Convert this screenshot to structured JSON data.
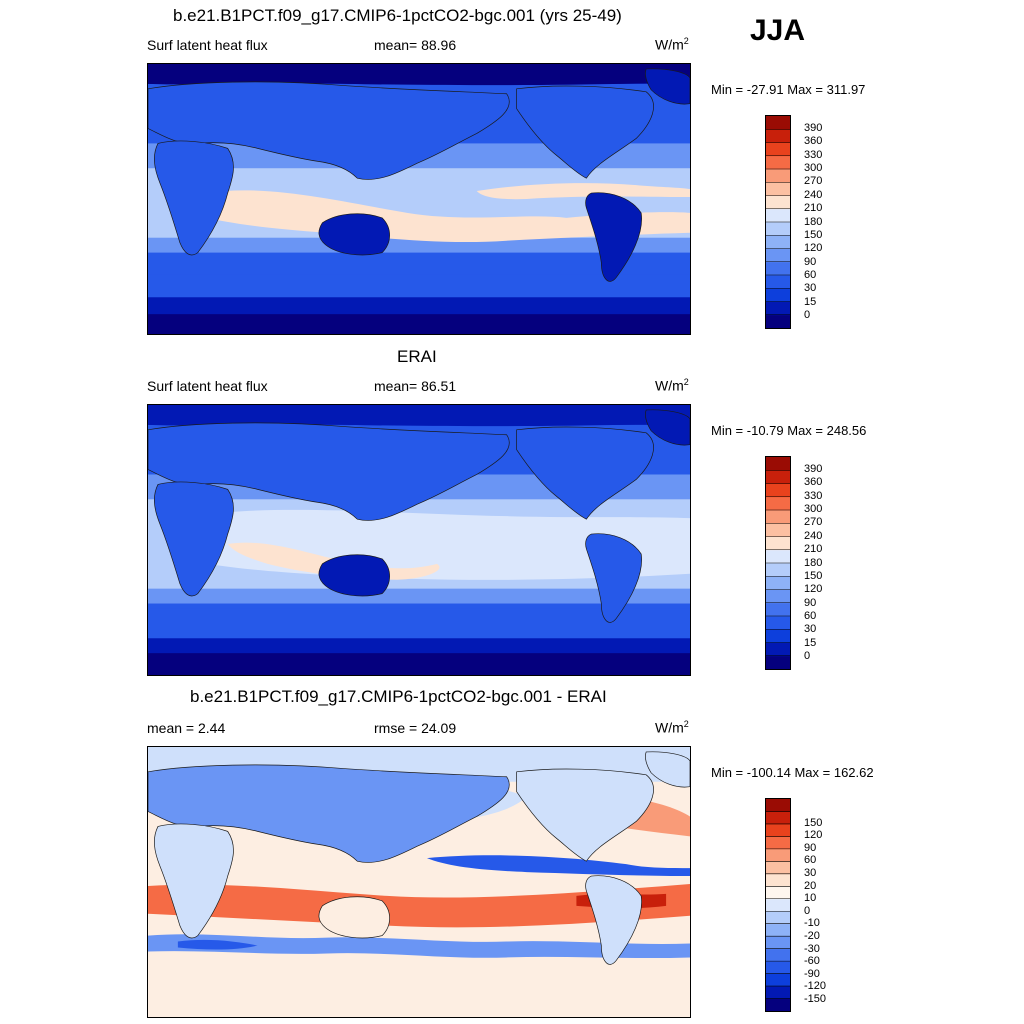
{
  "season": "JJA",
  "panels": [
    {
      "title": "b.e21.B1PCT.f09_g17.CMIP6-1pctCO2-bgc.001 (yrs 25-49)",
      "left_label": "Surf latent heat flux",
      "center_label": "mean=  88.96",
      "unit_base": "W/m",
      "unit_exp": "2",
      "minmax": "Min = -27.91 Max = 311.97",
      "colorbar": {
        "colors": [
          "#05007e",
          "#0219b4",
          "#0d3fdc",
          "#2659e9",
          "#4272ee",
          "#6a95f4",
          "#8eb2f7",
          "#b4cdfa",
          "#dbe7fc",
          "#fde3d0",
          "#fcc0a2",
          "#f99b78",
          "#f56b45",
          "#e9421d",
          "#c8200b",
          "#9a0c04"
        ],
        "labels": [
          "0",
          "15",
          "30",
          "60",
          "90",
          "120",
          "150",
          "180",
          "210",
          "240",
          "270",
          "300",
          "330",
          "360",
          "390"
        ]
      }
    },
    {
      "title": "ERAI",
      "left_label": "Surf latent heat flux",
      "center_label": "mean=  86.51",
      "unit_base": "W/m",
      "unit_exp": "2",
      "minmax": "Min = -10.79 Max = 248.56",
      "colorbar": {
        "colors": [
          "#05007e",
          "#0219b4",
          "#0d3fdc",
          "#2659e9",
          "#4272ee",
          "#6a95f4",
          "#8eb2f7",
          "#b4cdfa",
          "#dbe7fc",
          "#fde3d0",
          "#fcc0a2",
          "#f99b78",
          "#f56b45",
          "#e9421d",
          "#c8200b",
          "#9a0c04"
        ],
        "labels": [
          "0",
          "15",
          "30",
          "60",
          "90",
          "120",
          "150",
          "180",
          "210",
          "240",
          "270",
          "300",
          "330",
          "360",
          "390"
        ]
      }
    },
    {
      "title": "b.e21.B1PCT.f09_g17.CMIP6-1pctCO2-bgc.001 - ERAI",
      "left_label": "mean =   2.44",
      "center_label": "rmse =  24.09",
      "unit_base": "W/m",
      "unit_exp": "2",
      "minmax": "Min = -100.14 Max = 162.62",
      "colorbar": {
        "colors": [
          "#05007e",
          "#0219b4",
          "#0d3fdc",
          "#2659e9",
          "#4272ee",
          "#6a95f4",
          "#8eb2f7",
          "#b4cdfa",
          "#dbe7fc",
          "#fef6ee",
          "#fde3d0",
          "#fcc0a2",
          "#f99b78",
          "#f56b45",
          "#e9421d",
          "#c8200b",
          "#9a0c04"
        ],
        "labels": [
          "-150",
          "-120",
          "-90",
          "-60",
          "-30",
          "-20",
          "-10",
          "0",
          "10",
          "20",
          "30",
          "60",
          "90",
          "120",
          "150"
        ]
      }
    }
  ],
  "map_colors": {
    "deep": "#05007e",
    "dark": "#0219b4",
    "mid": "#2659e9",
    "light": "#6a95f4",
    "pale": "#b4cdfa",
    "palest": "#dbe7fc",
    "warm": "#fde3d0",
    "warm2": "#fcc0a2",
    "diff_bg": "#fdeee2",
    "diff_pale_blue": "#cfe0fb",
    "diff_blue": "#6a95f4",
    "diff_dark_blue": "#2659e9",
    "diff_orange": "#f56b45",
    "diff_light_orange": "#f99b78",
    "diff_red": "#c8200b",
    "coast": "#1a1a1a"
  }
}
